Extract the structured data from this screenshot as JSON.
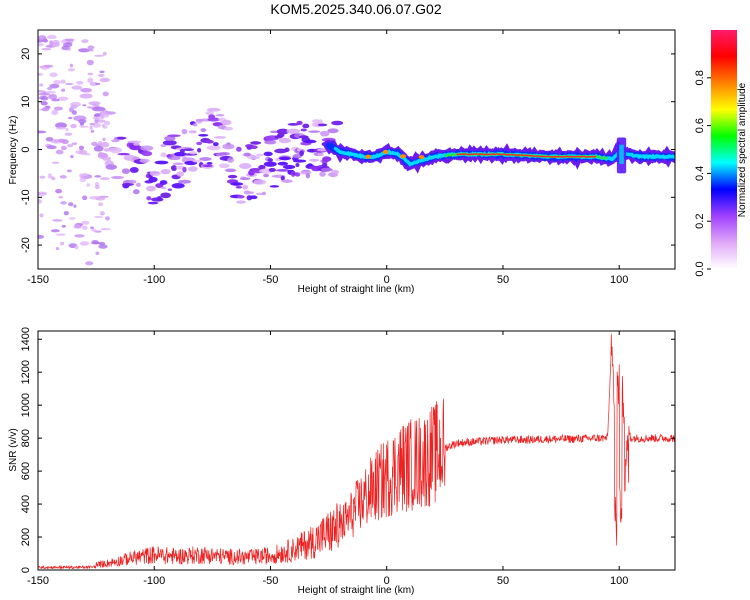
{
  "chart_data": [
    {
      "type": "heatmap",
      "title": "KOM5.2025.340.06.07.G02",
      "xlabel": "Height of straight line (km)",
      "ylabel": "Frequency (Hz)",
      "xlim": [
        -150,
        124
      ],
      "ylim": [
        -25,
        25
      ],
      "x_ticks": [
        -150,
        -100,
        -50,
        0,
        50,
        100
      ],
      "y_ticks": [
        -20,
        -10,
        0,
        10,
        20
      ],
      "grid": false,
      "colorbar": {
        "label": "Normalized spectral amplitude",
        "range": [
          0,
          1
        ],
        "ticks": [
          "0.0",
          "0.2",
          "0.4",
          "0.6",
          "0.8"
        ],
        "tick_values": [
          0,
          0.2,
          0.4,
          0.6,
          0.8
        ],
        "colors": [
          "#ffffff",
          "#e0a8f8",
          "#a040ff",
          "#0000ff",
          "#00ffff",
          "#00ff00",
          "#ffff00",
          "#ff8000",
          "#ff0000",
          "#ff1a6a"
        ]
      },
      "ridge": {
        "x": [
          -150,
          -130,
          -120,
          -110,
          -100,
          -90,
          -80,
          -72,
          -65,
          -55,
          -45,
          -35,
          -25,
          -20,
          -10,
          -5,
          0,
          5,
          10,
          20,
          30,
          50,
          70,
          90,
          97,
          100,
          103,
          110,
          124
        ],
        "y": [
          12,
          8,
          3,
          -4,
          -6,
          -2,
          1,
          4,
          -6,
          -4,
          -1,
          0,
          1,
          -0.5,
          -1.5,
          -1.5,
          -0.5,
          -1,
          -3,
          -1.5,
          -1,
          -1,
          -1.5,
          -1.5,
          -2,
          -0.5,
          -1,
          -1.5,
          -1.5
        ]
      },
      "strong_segment_x": [
        -25,
        124
      ]
    },
    {
      "type": "line",
      "xlabel": "Height of straight line (km)",
      "ylabel": "SNR (v/v)",
      "xlim": [
        -150,
        124
      ],
      "ylim": [
        0,
        1450
      ],
      "x_ticks": [
        -150,
        -100,
        -50,
        0,
        50,
        100
      ],
      "y_ticks": [
        0,
        200,
        400,
        600,
        800,
        1000,
        1200,
        1400
      ],
      "grid": false,
      "line_color": "#ee2020",
      "envelope": {
        "x": [
          -150,
          -130,
          -120,
          -110,
          -100,
          -90,
          -80,
          -70,
          -60,
          -50,
          -40,
          -30,
          -20,
          -15,
          -10,
          -5,
          0,
          5,
          10,
          15,
          20,
          25,
          30,
          40,
          50,
          60,
          70,
          80,
          90,
          95,
          97,
          98,
          99,
          100,
          101,
          102,
          103,
          105,
          110,
          124
        ],
        "y": [
          20,
          20,
          40,
          70,
          90,
          80,
          90,
          80,
          75,
          85,
          120,
          180,
          260,
          340,
          430,
          500,
          560,
          620,
          640,
          660,
          700,
          740,
          770,
          780,
          790,
          790,
          795,
          795,
          800,
          800,
          1450,
          80,
          1200,
          500,
          1180,
          600,
          900,
          800,
          800,
          800
        ]
      }
    }
  ]
}
